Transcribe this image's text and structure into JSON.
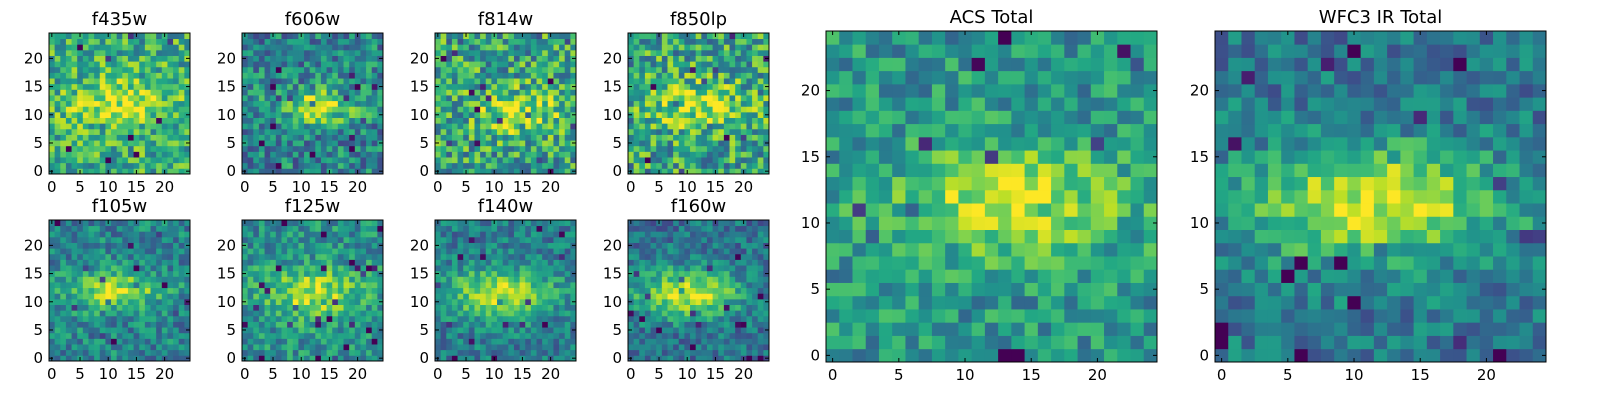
{
  "figure": {
    "description_panels": 10
  },
  "palette": {
    "colormap": "viridis",
    "colors": [
      "#440154",
      "#482475",
      "#414487",
      "#355f8d",
      "#2a788e",
      "#21918c",
      "#22a884",
      "#44bf70",
      "#7ad151",
      "#bddf26",
      "#fde725"
    ]
  },
  "chart_data": [
    {
      "type": "heatmap",
      "title": "f435w",
      "grid": false,
      "size": 25,
      "xlim": [
        0,
        24
      ],
      "ylim": [
        0,
        24
      ],
      "x_ticks": [
        0,
        5,
        10,
        15,
        20
      ],
      "y_ticks": [
        0,
        5,
        10,
        15,
        20
      ],
      "blob": {
        "cx": 12,
        "cy": 12,
        "amp": 0.3,
        "sx": 6,
        "sy": 3
      },
      "noise": 0.26,
      "base": 0.62,
      "seed": 11
    },
    {
      "type": "heatmap",
      "title": "f606w",
      "grid": false,
      "size": 25,
      "xlim": [
        0,
        24
      ],
      "ylim": [
        0,
        24
      ],
      "x_ticks": [
        0,
        5,
        10,
        15,
        20
      ],
      "y_ticks": [
        0,
        5,
        10,
        15,
        20
      ],
      "blob": {
        "cx": 13,
        "cy": 11.5,
        "amp": 0.45,
        "sx": 5,
        "sy": 2.2
      },
      "noise": 0.25,
      "base": 0.45,
      "seed": 23
    },
    {
      "type": "heatmap",
      "title": "f814w",
      "grid": false,
      "size": 25,
      "xlim": [
        0,
        24
      ],
      "ylim": [
        0,
        24
      ],
      "x_ticks": [
        0,
        5,
        10,
        15,
        20
      ],
      "y_ticks": [
        0,
        5,
        10,
        15,
        20
      ],
      "blob": {
        "cx": 14,
        "cy": 10.5,
        "amp": 0.35,
        "sx": 5,
        "sy": 2.5
      },
      "noise": 0.3,
      "base": 0.58,
      "seed": 37
    },
    {
      "type": "heatmap",
      "title": "f850lp",
      "grid": false,
      "size": 25,
      "xlim": [
        0,
        24
      ],
      "ylim": [
        0,
        24
      ],
      "x_ticks": [
        0,
        5,
        10,
        15,
        20
      ],
      "y_ticks": [
        0,
        5,
        10,
        15,
        20
      ],
      "blob": {
        "cx": 12,
        "cy": 11.5,
        "amp": 0.3,
        "sx": 6,
        "sy": 3
      },
      "noise": 0.3,
      "base": 0.58,
      "seed": 41
    },
    {
      "type": "heatmap",
      "title": "f105w",
      "grid": false,
      "size": 25,
      "xlim": [
        0,
        24
      ],
      "ylim": [
        0,
        24
      ],
      "x_ticks": [
        0,
        5,
        10,
        15,
        20
      ],
      "y_ticks": [
        0,
        5,
        10,
        15,
        20
      ],
      "blob": {
        "cx": 11,
        "cy": 12,
        "amp": 0.45,
        "sx": 6,
        "sy": 2.3
      },
      "noise": 0.2,
      "base": 0.45,
      "seed": 53
    },
    {
      "type": "heatmap",
      "title": "f125w",
      "grid": false,
      "size": 25,
      "xlim": [
        0,
        24
      ],
      "ylim": [
        0,
        24
      ],
      "x_ticks": [
        0,
        5,
        10,
        15,
        20
      ],
      "y_ticks": [
        0,
        5,
        10,
        15,
        20
      ],
      "blob": {
        "cx": 12,
        "cy": 11.5,
        "amp": 0.4,
        "sx": 6,
        "sy": 3
      },
      "noise": 0.2,
      "base": 0.5,
      "seed": 67
    },
    {
      "type": "heatmap",
      "title": "f140w",
      "grid": false,
      "size": 25,
      "xlim": [
        0,
        24
      ],
      "ylim": [
        0,
        24
      ],
      "x_ticks": [
        0,
        5,
        10,
        15,
        20
      ],
      "y_ticks": [
        0,
        5,
        10,
        15,
        20
      ],
      "blob": {
        "cx": 11,
        "cy": 11.5,
        "amp": 0.5,
        "sx": 6.5,
        "sy": 3
      },
      "noise": 0.18,
      "base": 0.42,
      "seed": 79
    },
    {
      "type": "heatmap",
      "title": "f160w",
      "grid": false,
      "size": 25,
      "xlim": [
        0,
        24
      ],
      "ylim": [
        0,
        24
      ],
      "x_ticks": [
        0,
        5,
        10,
        15,
        20
      ],
      "y_ticks": [
        0,
        5,
        10,
        15,
        20
      ],
      "blob": {
        "cx": 10,
        "cy": 11.5,
        "amp": 0.55,
        "sx": 6.5,
        "sy": 3
      },
      "noise": 0.18,
      "base": 0.38,
      "seed": 83
    },
    {
      "type": "heatmap",
      "title": "ACS Total",
      "grid": false,
      "size": 25,
      "xlim": [
        0,
        24
      ],
      "ylim": [
        0,
        24
      ],
      "x_ticks": [
        0,
        5,
        10,
        15,
        20
      ],
      "y_ticks": [
        0,
        5,
        10,
        15,
        20
      ],
      "blob": {
        "cx": 13.5,
        "cy": 11.5,
        "amp": 0.45,
        "sx": 6,
        "sy": 2.6
      },
      "noise": 0.2,
      "base": 0.52,
      "seed": 97
    },
    {
      "type": "heatmap",
      "title": "WFC3 IR Total",
      "grid": false,
      "size": 25,
      "xlim": [
        0,
        24
      ],
      "ylim": [
        0,
        24
      ],
      "x_ticks": [
        0,
        5,
        10,
        15,
        20
      ],
      "y_ticks": [
        0,
        5,
        10,
        15,
        20
      ],
      "blob": {
        "cx": 11.5,
        "cy": 11.5,
        "amp": 0.55,
        "sx": 7,
        "sy": 3
      },
      "noise": 0.18,
      "base": 0.4,
      "seed": 101
    }
  ]
}
